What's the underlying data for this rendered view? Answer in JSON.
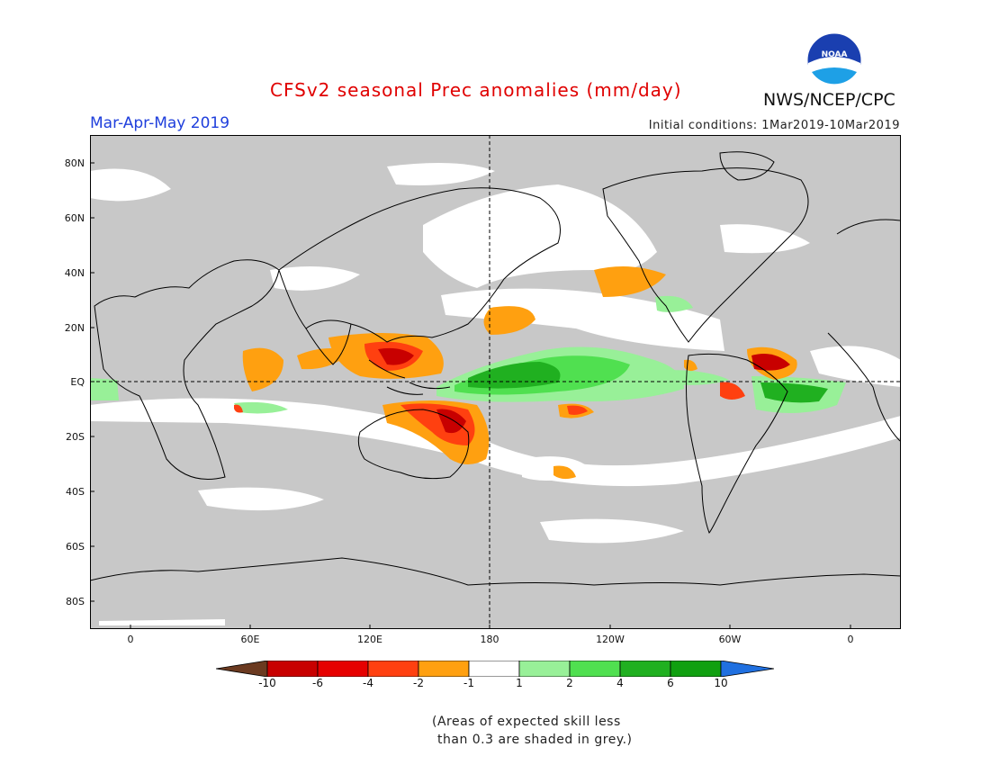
{
  "header": {
    "title": "CFSv2 seasonal Prec anomalies (mm/day)",
    "period": "Mar-Apr-May 2019",
    "initial_conditions": "Initial conditions: 1Mar2019-10Mar2019",
    "agency": "NWS/NCEP/CPC",
    "logo_text": "NOAA"
  },
  "axes": {
    "lat_labels": [
      "80N",
      "60N",
      "40N",
      "20N",
      "EQ",
      "20S",
      "40S",
      "60S",
      "80S"
    ],
    "lon_labels": [
      "0",
      "60E",
      "120E",
      "180",
      "120W",
      "60W",
      "0"
    ]
  },
  "legend": {
    "tick_labels": [
      "-10",
      "-6",
      "-4",
      "-2",
      "-1",
      "1",
      "2",
      "4",
      "6",
      "10"
    ],
    "colors": [
      "#6b3a20",
      "#c80000",
      "#e60000",
      "#ff4010",
      "#ffa010",
      "#ffffff",
      "#98f098",
      "#50e050",
      "#20b020",
      "#10a010",
      "#2070e0"
    ]
  },
  "footnote": {
    "line1": "(Areas of expected skill less",
    "line2": "than 0.3 are shaded in grey.)"
  },
  "colors": {
    "skill_grey": "#c8c8c8",
    "title_red": "#e00000",
    "period_blue": "#1f3fdc"
  }
}
